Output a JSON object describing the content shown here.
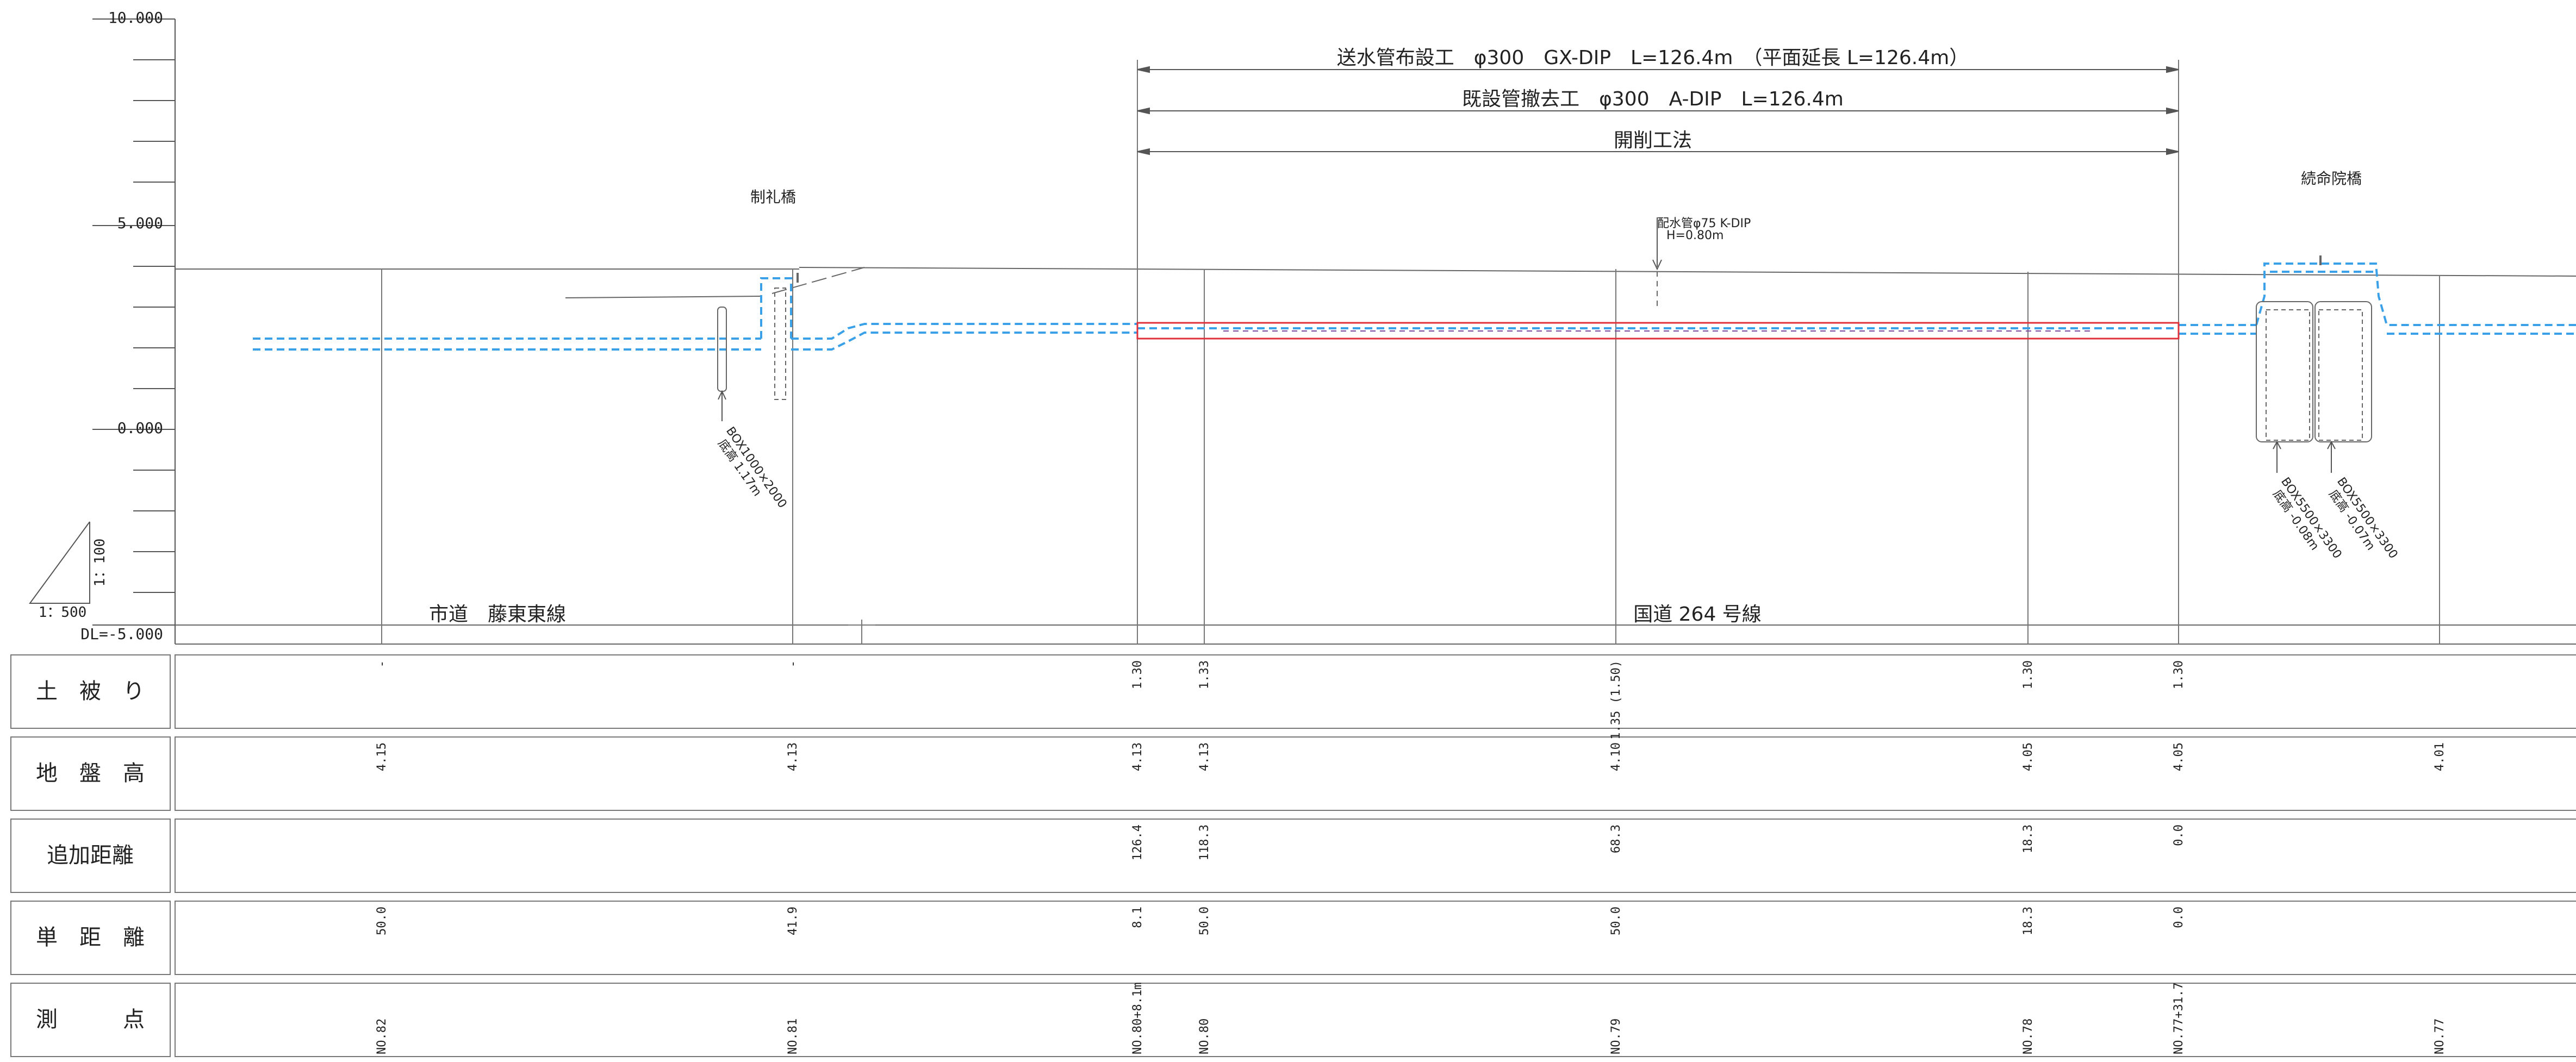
{
  "y_axis": {
    "labels": [
      "10.000",
      "5.000",
      "0.000",
      "DL=-5.000"
    ],
    "scale_vertical": "1：100",
    "scale_horizontal": "1：500"
  },
  "dimensions": {
    "line1": "送水管布設工　φ300　GX-DIP　L=126.4m　（平面延長 L=126.4m）",
    "line2": "既設管撤去工　φ300　A-DIP　L=126.4m",
    "line3": "開削工法"
  },
  "labels": {
    "bridge_left": "制礼橋",
    "bridge_right": "続命院橋",
    "pipe_note_line1": "配水管φ75 K-DIP",
    "pipe_note_line2": "H=0.80m",
    "box_left_line1": "BOX1000×2000",
    "box_left_line2": "底高 1.17m",
    "box_right1_line1": "BOX5500×3300",
    "box_right1_line2": "底高 -0.08m",
    "box_right2_line1": "BOX5500×3300",
    "box_right2_line2": "底高 -0.07m",
    "road_left": "市道　藤東東線",
    "road_right": "国道 264 号線"
  },
  "table": {
    "row_labels": [
      "土　被　り",
      "地　盤　高",
      "追加距離",
      "単　距　離",
      "測　　　点"
    ],
    "columns": [
      {
        "cover": "-",
        "ground": "4.15",
        "cum": "",
        "single": "50.0",
        "station": "NO.82"
      },
      {
        "cover": "-",
        "ground": "4.13",
        "cum": "",
        "single": "41.9",
        "station": "NO.81"
      },
      {
        "cover": "1.30",
        "ground": "4.13",
        "cum": "126.4",
        "single": "8.1",
        "station": "NO.80+8.1m"
      },
      {
        "cover": "1.33",
        "ground": "4.13",
        "cum": "118.3",
        "single": "50.0",
        "station": "NO.80"
      },
      {
        "cover": "1.35 (1.50)",
        "ground": "4.10",
        "cum": "68.3",
        "single": "50.0",
        "station": "NO.79"
      },
      {
        "cover": "1.30",
        "ground": "4.05",
        "cum": "18.3",
        "single": "18.3",
        "station": "NO.78"
      },
      {
        "cover": "1.30",
        "ground": "4.05",
        "cum": "0.0",
        "single": "0.0",
        "station": "NO.77+31.7"
      },
      {
        "cover": "",
        "ground": "4.01",
        "cum": "",
        "single": "",
        "station": "NO.77"
      }
    ]
  },
  "colors": {
    "line": "#555555",
    "new_pipe": "#e0303a",
    "existing": "#3aa0e8",
    "text": "#222222"
  }
}
